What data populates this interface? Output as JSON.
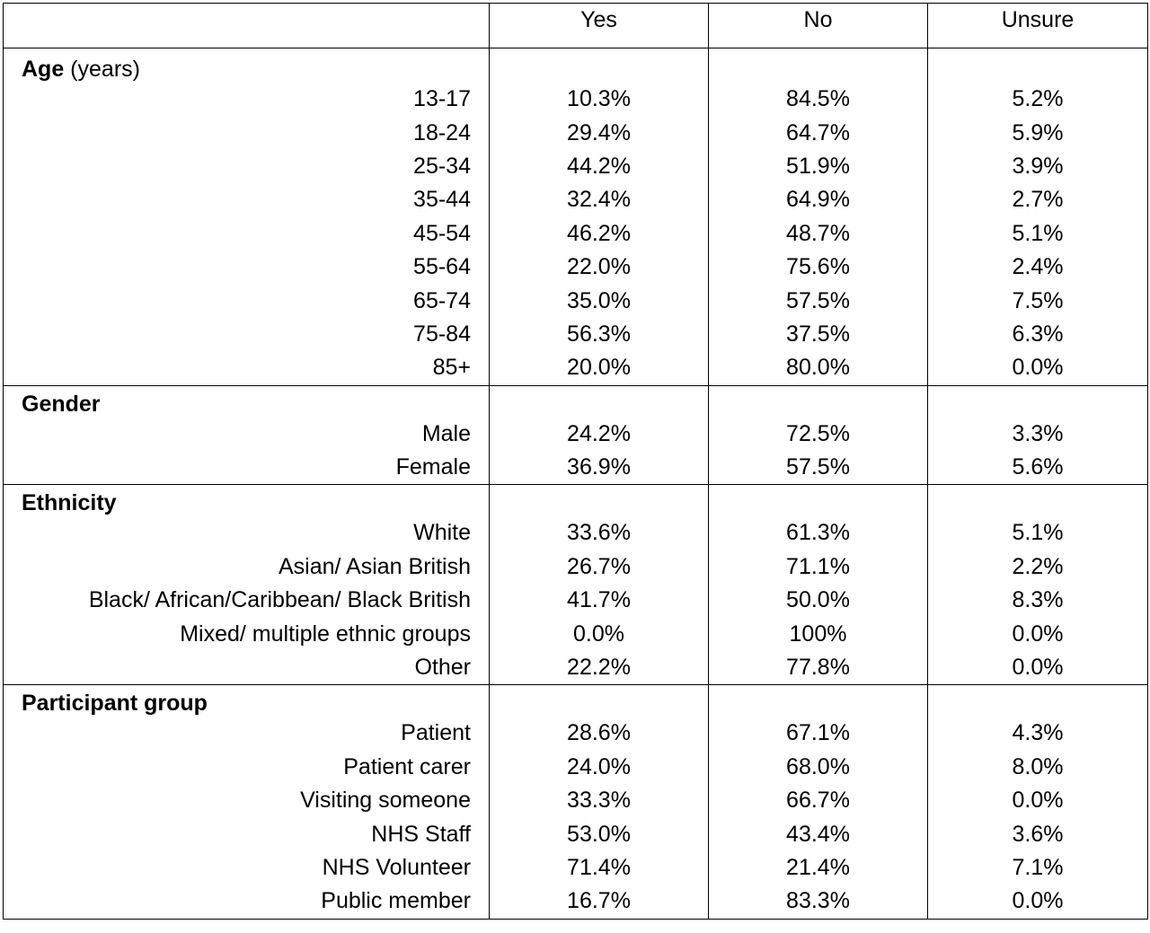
{
  "headers": [
    "",
    "Yes",
    "No",
    "Unsure"
  ],
  "groups": [
    {
      "title": "Age",
      "title_suffix": " (years)",
      "rows": [
        {
          "label": "13-17",
          "yes": "10.3%",
          "no": "84.5%",
          "unsure": "5.2%"
        },
        {
          "label": "18-24",
          "yes": "29.4%",
          "no": "64.7%",
          "unsure": "5.9%"
        },
        {
          "label": "25-34",
          "yes": "44.2%",
          "no": "51.9%",
          "unsure": "3.9%"
        },
        {
          "label": "35-44",
          "yes": "32.4%",
          "no": "64.9%",
          "unsure": "2.7%"
        },
        {
          "label": "45-54",
          "yes": "46.2%",
          "no": "48.7%",
          "unsure": "5.1%"
        },
        {
          "label": "55-64",
          "yes": "22.0%",
          "no": "75.6%",
          "unsure": "2.4%"
        },
        {
          "label": "65-74",
          "yes": "35.0%",
          "no": "57.5%",
          "unsure": "7.5%"
        },
        {
          "label": "75-84",
          "yes": "56.3%",
          "no": "37.5%",
          "unsure": "6.3%"
        },
        {
          "label": "85+",
          "yes": "20.0%",
          "no": "80.0%",
          "unsure": "0.0%"
        }
      ]
    },
    {
      "title": "Gender",
      "title_suffix": "",
      "rows": [
        {
          "label": "Male",
          "yes": "24.2%",
          "no": "72.5%",
          "unsure": "3.3%"
        },
        {
          "label": "Female",
          "yes": "36.9%",
          "no": "57.5%",
          "unsure": "5.6%"
        }
      ]
    },
    {
      "title": "Ethnicity",
      "title_suffix": "",
      "rows": [
        {
          "label": "White",
          "yes": "33.6%",
          "no": "61.3%",
          "unsure": "5.1%"
        },
        {
          "label": "Asian/ Asian British",
          "yes": "26.7%",
          "no": "71.1%",
          "unsure": "2.2%"
        },
        {
          "label": "Black/ African/Caribbean/ Black British",
          "yes": "41.7%",
          "no": "50.0%",
          "unsure": "8.3%"
        },
        {
          "label": "Mixed/ multiple ethnic groups",
          "yes": "0.0%",
          "no": "100%",
          "unsure": "0.0%"
        },
        {
          "label": "Other",
          "yes": "22.2%",
          "no": "77.8%",
          "unsure": "0.0%"
        }
      ]
    },
    {
      "title": "Participant group",
      "title_suffix": "",
      "rows": [
        {
          "label": "Patient",
          "yes": "28.6%",
          "no": "67.1%",
          "unsure": "4.3%"
        },
        {
          "label": "Patient carer",
          "yes": "24.0%",
          "no": "68.0%",
          "unsure": "8.0%"
        },
        {
          "label": "Visiting someone",
          "yes": "33.3%",
          "no": "66.7%",
          "unsure": "0.0%"
        },
        {
          "label": "NHS Staff",
          "yes": "53.0%",
          "no": "43.4%",
          "unsure": "3.6%"
        },
        {
          "label": "NHS Volunteer",
          "yes": "71.4%",
          "no": "21.4%",
          "unsure": "7.1%"
        },
        {
          "label": "Public member",
          "yes": "16.7%",
          "no": "83.3%",
          "unsure": "0.0%"
        }
      ]
    }
  ]
}
